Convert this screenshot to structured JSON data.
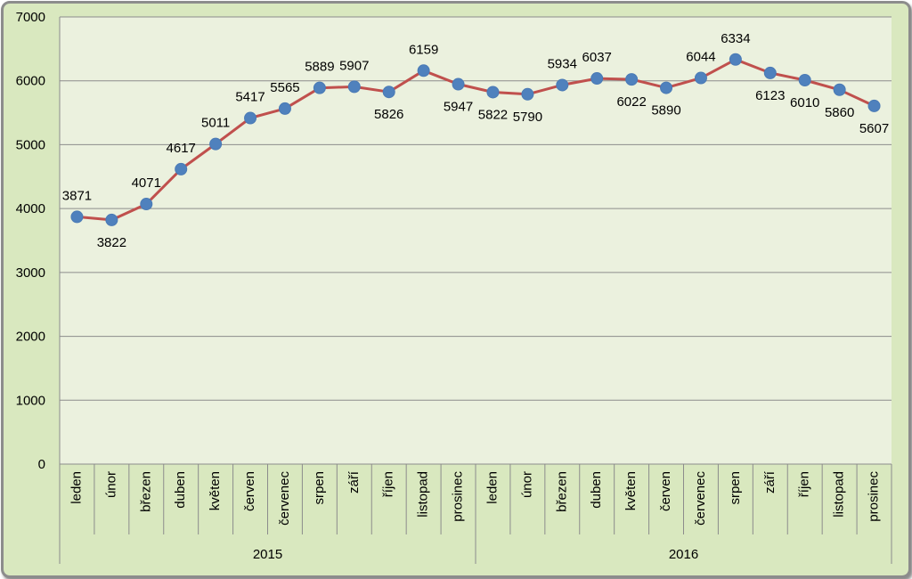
{
  "chart_data": {
    "type": "line",
    "title": "",
    "xlabel": "",
    "ylabel": "",
    "ylim": [
      0,
      7000
    ],
    "yticks": [
      0,
      1000,
      2000,
      3000,
      4000,
      5000,
      6000,
      7000
    ],
    "grid": true,
    "legend": "none",
    "colors": {
      "line": "#c0504d",
      "marker": "#4f81bd",
      "plot_background": "#ebf1de",
      "frame_background": "#d9e8bf"
    },
    "groups": [
      {
        "label": "2015",
        "categories": [
          "leden",
          "únor",
          "březen",
          "duben",
          "květen",
          "červen",
          "červenec",
          "srpen",
          "září",
          "říjen",
          "listopad",
          "prosinec"
        ]
      },
      {
        "label": "2016",
        "categories": [
          "leden",
          "únor",
          "březen",
          "duben",
          "květen",
          "červen",
          "červenec",
          "srpen",
          "září",
          "říjen",
          "listopad",
          "prosinec"
        ]
      }
    ],
    "series": [
      {
        "values": [
          3871,
          3822,
          4071,
          4617,
          5011,
          5417,
          5565,
          5889,
          5907,
          5826,
          6159,
          5947,
          5822,
          5790,
          5934,
          6037,
          6022,
          5890,
          6044,
          6334,
          6123,
          6010,
          5860,
          5607
        ]
      }
    ]
  }
}
